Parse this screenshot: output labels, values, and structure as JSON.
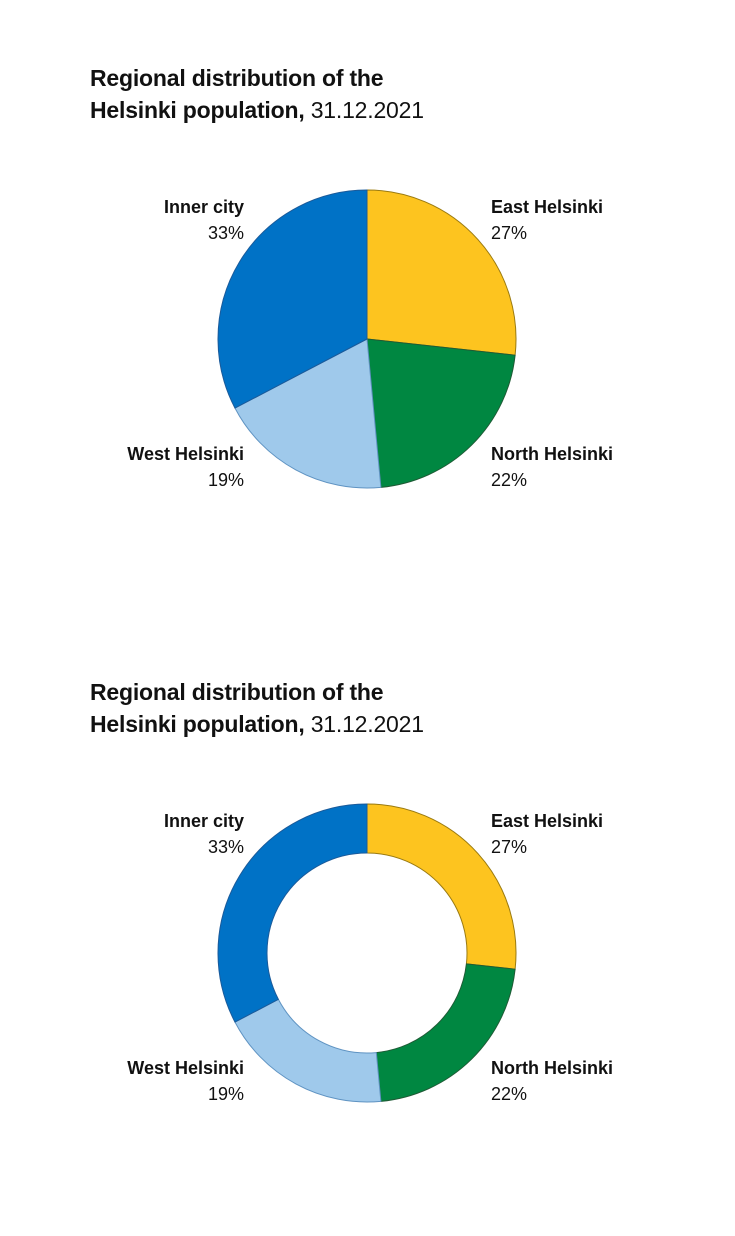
{
  "charts": [
    {
      "title_line1": "Regional distribution of the",
      "title_line2": "Helsinki population,",
      "title_date": "31.12.2021"
    },
    {
      "title_line1": "Regional distribution of the",
      "title_line2": "Helsinki population,",
      "title_date": "31.12.2021"
    }
  ],
  "chart_data": [
    {
      "type": "pie",
      "title": "Regional distribution of the Helsinki population, 31.12.2021",
      "start": "top, clockwise",
      "slices": [
        {
          "name": "East Helsinki",
          "value": 27,
          "label": "27%",
          "color": "#FDC41F"
        },
        {
          "name": "North Helsinki",
          "value": 22,
          "label": "22%",
          "color": "#008741"
        },
        {
          "name": "West Helsinki",
          "value": 19,
          "label": "19%",
          "color": "#9FC9EB"
        },
        {
          "name": "Inner city",
          "value": 33,
          "label": "33%",
          "color": "#0072C6"
        }
      ]
    },
    {
      "type": "donut",
      "title": "Regional distribution of the Helsinki population, 31.12.2021",
      "start": "top, clockwise",
      "slices": [
        {
          "name": "East Helsinki",
          "value": 27,
          "label": "27%",
          "color": "#FDC41F"
        },
        {
          "name": "North Helsinki",
          "value": 22,
          "label": "22%",
          "color": "#008741"
        },
        {
          "name": "West Helsinki",
          "value": 19,
          "label": "19%",
          "color": "#9FC9EB"
        },
        {
          "name": "Inner city",
          "value": 33,
          "label": "33%",
          "color": "#0072C6"
        }
      ]
    }
  ]
}
